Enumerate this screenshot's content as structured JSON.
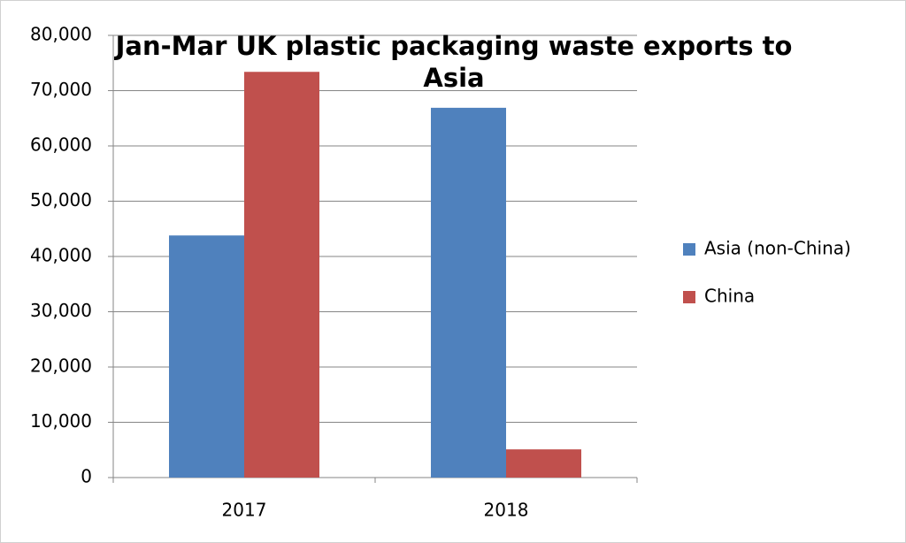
{
  "chart_data": {
    "type": "bar",
    "title": "Jan-Mar UK plastic packaging waste exports to Asia",
    "categories": [
      "2017",
      "2018"
    ],
    "series": [
      {
        "name": "Asia (non-China)",
        "color": "#4f81bd",
        "values": [
          43800,
          66900
        ]
      },
      {
        "name": "China",
        "color": "#c0504d",
        "values": [
          73400,
          5100
        ]
      }
    ],
    "ylim": [
      0,
      80000
    ],
    "yticks": [
      0,
      {
        "value": 10000,
        "label": "10,000"
      },
      {
        "value": 20000,
        "label": "20,000"
      },
      {
        "value": 30000,
        "label": "30,000"
      },
      {
        "value": 40000,
        "label": "40,000"
      },
      {
        "value": 50000,
        "label": "50,000"
      },
      {
        "value": 60000,
        "label": "60,000"
      },
      {
        "value": 70000,
        "label": "70,000"
      },
      {
        "value": 80000,
        "label": "80,000"
      }
    ],
    "grid": true,
    "legend": "right"
  }
}
